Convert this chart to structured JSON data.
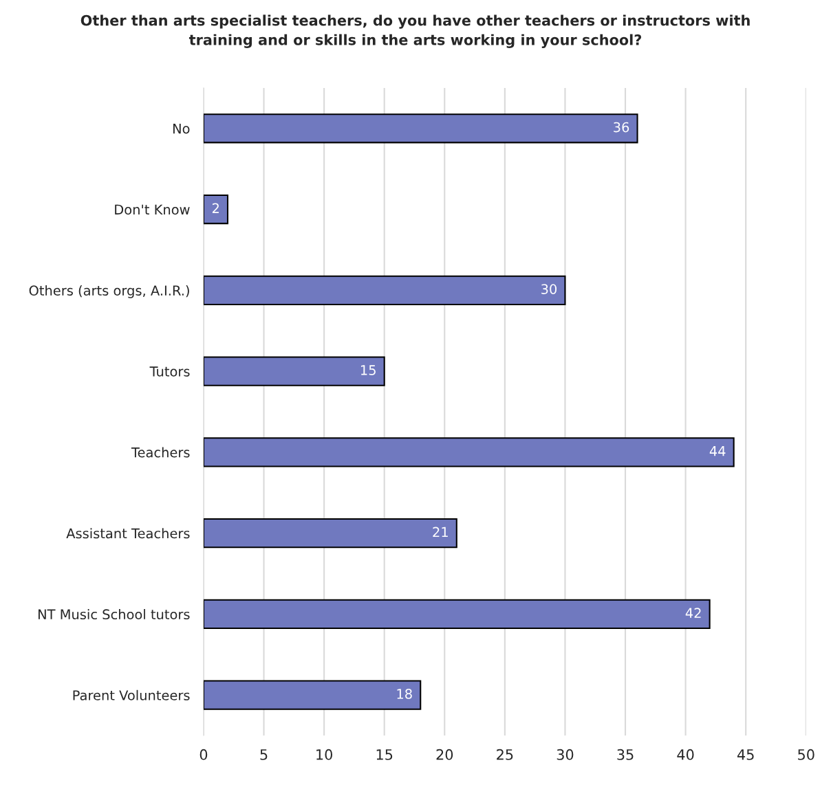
{
  "chart_data": {
    "type": "bar",
    "orientation": "horizontal",
    "title": "Other than arts specialist teachers, do you have other teachers or instructors with\ntraining and or skills in the arts working in your school?",
    "categories": [
      "No",
      "Don't Know",
      "Others (arts orgs, A.I.R.)",
      "Tutors",
      "Teachers",
      "Assistant Teachers",
      "NT Music School tutors",
      "Parent Volunteers"
    ],
    "values": [
      36,
      2,
      30,
      15,
      44,
      21,
      42,
      18
    ],
    "color": "#7079bf",
    "xlim": [
      0,
      50
    ],
    "xticks": [
      0,
      5,
      10,
      15,
      20,
      25,
      30,
      35,
      40,
      45,
      50
    ],
    "grid": "x",
    "data_labels": true
  }
}
